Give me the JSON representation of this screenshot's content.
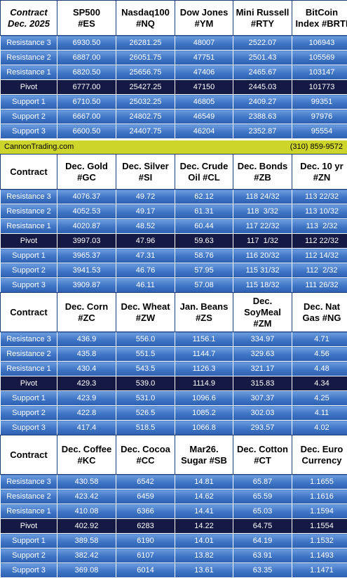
{
  "banner": {
    "site": "CannonTrading.com",
    "phone": "(310) 859-9572"
  },
  "blocks": [
    {
      "header": [
        [
          "Contract",
          "Dec. 2025"
        ],
        [
          "SP500",
          "#ES"
        ],
        [
          "Nasdaq100",
          "#NQ"
        ],
        [
          "Dow Jones",
          "#YM"
        ],
        [
          "Mini Russell",
          "#RTY"
        ],
        [
          "BitCoin",
          "Index #BRTI"
        ]
      ],
      "rows": [
        [
          "Resistance 3",
          "6930.50",
          "26281.25",
          "48007",
          "2522.07",
          "106943"
        ],
        [
          "Resistance 2",
          "6887.00",
          "26051.75",
          "47751",
          "2501.43",
          "105569"
        ],
        [
          "Resistance 1",
          "6820.50",
          "25656.75",
          "47406",
          "2465.67",
          "103147"
        ],
        [
          "Pivot",
          "6777.00",
          "25427.25",
          "47150",
          "2445.03",
          "101773"
        ],
        [
          "Support 1",
          "6710.50",
          "25032.25",
          "46805",
          "2409.27",
          "99351"
        ],
        [
          "Support 2",
          "6667.00",
          "24802.75",
          "46549",
          "2388.63",
          "97976"
        ],
        [
          "Support 3",
          "6600.50",
          "24407.75",
          "46204",
          "2352.87",
          "95554"
        ]
      ]
    },
    {
      "header": [
        [
          "Contract"
        ],
        [
          "Dec. Gold",
          "#GC"
        ],
        [
          "Dec. Silver",
          "#SI"
        ],
        [
          "Dec. Crude",
          "Oil #CL"
        ],
        [
          "Dec. Bonds",
          "#ZB"
        ],
        [
          "Dec. 10 yr",
          "#ZN"
        ]
      ],
      "rows": [
        [
          "Resistance 3",
          "4076.37",
          "49.72",
          "62.12",
          "118 24/32",
          "113 22/32"
        ],
        [
          "Resistance 2",
          "4052.53",
          "49.17",
          "61.31",
          "118  3/32",
          "113 10/32"
        ],
        [
          "Resistance 1",
          "4020.87",
          "48.52",
          "60.44",
          "117 22/32",
          "113  2/32"
        ],
        [
          "Pivot",
          "3997.03",
          "47.96",
          "59.63",
          "117  1/32",
          "112 22/32"
        ],
        [
          "Support 1",
          "3965.37",
          "47.31",
          "58.76",
          "116 20/32",
          "112 14/32"
        ],
        [
          "Support 2",
          "3941.53",
          "46.76",
          "57.95",
          "115 31/32",
          "112  2/32"
        ],
        [
          "Support 3",
          "3909.87",
          "46.11",
          "57.08",
          "115 18/32",
          "111 26/32"
        ]
      ]
    },
    {
      "header": [
        [
          "Contract"
        ],
        [
          "Dec. Corn",
          "#ZC"
        ],
        [
          "Dec.  Wheat",
          "#ZW"
        ],
        [
          "Jan. Beans",
          "#ZS"
        ],
        [
          "Dec.",
          "SoyMeal",
          "#ZM"
        ],
        [
          "Dec. Nat",
          "Gas #NG"
        ]
      ],
      "rows": [
        [
          "Resistance 3",
          "436.9",
          "556.0",
          "1156.1",
          "334.97",
          "4.71"
        ],
        [
          "Resistance 2",
          "435.8",
          "551.5",
          "1144.7",
          "329.63",
          "4.56"
        ],
        [
          "Resistance 1",
          "430.4",
          "543.5",
          "1126.3",
          "321.17",
          "4.48"
        ],
        [
          "Pivot",
          "429.3",
          "539.0",
          "1114.9",
          "315.83",
          "4.34"
        ],
        [
          "Support 1",
          "423.9",
          "531.0",
          "1096.6",
          "307.37",
          "4.25"
        ],
        [
          "Support 2",
          "422.8",
          "526.5",
          "1085.2",
          "302.03",
          "4.11"
        ],
        [
          "Support 3",
          "417.4",
          "518.5",
          "1066.8",
          "293.57",
          "4.02"
        ]
      ]
    },
    {
      "header": [
        [
          "Contract"
        ],
        [
          "Dec. Coffee",
          "#KC"
        ],
        [
          "Dec. Cocoa",
          "#CC"
        ],
        [
          "Mar26.",
          "Sugar #SB"
        ],
        [
          "Dec. Cotton",
          "#CT"
        ],
        [
          "Dec. Euro",
          "Currency"
        ]
      ],
      "rows": [
        [
          "Resistance 3",
          "430.58",
          "6542",
          "14.81",
          "65.87",
          "1.1655"
        ],
        [
          "Resistance 2",
          "423.42",
          "6459",
          "14.62",
          "65.59",
          "1.1616"
        ],
        [
          "Resistance 1",
          "410.08",
          "6366",
          "14.41",
          "65.03",
          "1.1594"
        ],
        [
          "Pivot",
          "402.92",
          "6283",
          "14.22",
          "64.75",
          "1.1554"
        ],
        [
          "Support 1",
          "389.58",
          "6190",
          "14.01",
          "64.19",
          "1.1532"
        ],
        [
          "Support 2",
          "382.42",
          "6107",
          "13.82",
          "63.91",
          "1.1493"
        ],
        [
          "Support 3",
          "369.08",
          "6014",
          "13.61",
          "63.35",
          "1.1471"
        ]
      ]
    }
  ]
}
